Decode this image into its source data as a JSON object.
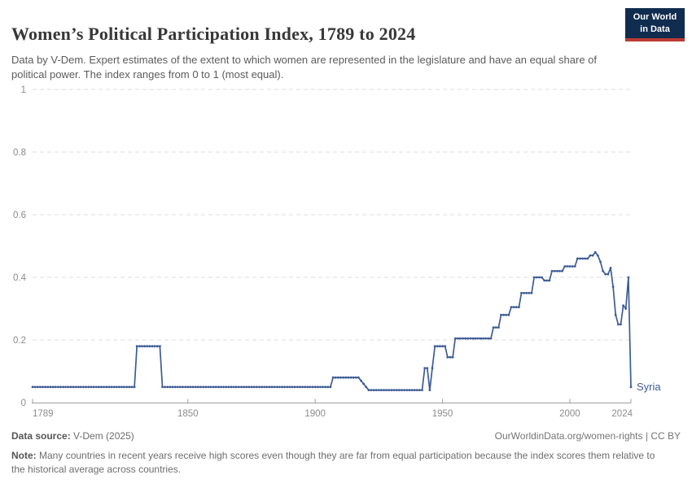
{
  "header": {
    "title": "Women’s Political Participation Index, 1789 to 2024",
    "subtitle": "Data by V-Dem. Expert estimates of the extent to which women are represented in the legislature and have an equal share of political power. The index ranges from 0 to 1 (most equal).",
    "logo": {
      "line1": "Our World",
      "line2": "in Data"
    }
  },
  "footer": {
    "source_label": "Data source:",
    "source_value": "V-Dem (2025)",
    "url": "OurWorldinData.org/women-rights",
    "separator": " | ",
    "license": "CC BY",
    "note_label": "Note:",
    "note_text": "Many countries in recent years receive high scores even though they are far from equal participation because the index scores them relative to the historical average across countries."
  },
  "colors": {
    "line": "#3d5c96",
    "grid": "#dcdcdc",
    "axis": "#9e9e9e",
    "tick_label": "#8b8b8b",
    "logo_bg": "#102c4e",
    "logo_accent": "#bc3b33"
  },
  "chart_data": {
    "type": "line",
    "title": "Women’s Political Participation Index, 1789 to 2024",
    "entity_label": "Syria",
    "xlabel": "",
    "ylabel": "",
    "xlim": [
      1789,
      2024
    ],
    "ylim": [
      0,
      1
    ],
    "x_ticks": [
      1789,
      1850,
      1900,
      1950,
      2000,
      2024
    ],
    "y_ticks": [
      0,
      0.2,
      0.4,
      0.6,
      0.8,
      1
    ],
    "grid": "horizontal-dashed",
    "legend_position": "end-of-line-label",
    "series": [
      {
        "name": "Syria",
        "runs": [
          {
            "start": 1789,
            "end": 1829,
            "value": 0.05
          },
          {
            "start": 1830,
            "end": 1839,
            "value": 0.18
          },
          {
            "start": 1840,
            "end": 1906,
            "value": 0.05
          },
          {
            "start": 1907,
            "end": 1917,
            "value": 0.08
          },
          {
            "start": 1918,
            "end": 1918,
            "value": 0.07
          },
          {
            "start": 1919,
            "end": 1919,
            "value": 0.06
          },
          {
            "start": 1920,
            "end": 1920,
            "value": 0.05
          },
          {
            "start": 1921,
            "end": 1942,
            "value": 0.04
          },
          {
            "start": 1943,
            "end": 1944,
            "value": 0.11
          },
          {
            "start": 1945,
            "end": 1945,
            "value": 0.04
          },
          {
            "start": 1946,
            "end": 1946,
            "value": 0.11
          },
          {
            "start": 1947,
            "end": 1951,
            "value": 0.18
          },
          {
            "start": 1952,
            "end": 1954,
            "value": 0.145
          },
          {
            "start": 1955,
            "end": 1969,
            "value": 0.205
          },
          {
            "start": 1970,
            "end": 1972,
            "value": 0.24
          },
          {
            "start": 1973,
            "end": 1976,
            "value": 0.28
          },
          {
            "start": 1977,
            "end": 1980,
            "value": 0.305
          },
          {
            "start": 1981,
            "end": 1985,
            "value": 0.35
          },
          {
            "start": 1986,
            "end": 1989,
            "value": 0.4
          },
          {
            "start": 1990,
            "end": 1992,
            "value": 0.39
          },
          {
            "start": 1993,
            "end": 1997,
            "value": 0.42
          },
          {
            "start": 1998,
            "end": 2002,
            "value": 0.435
          },
          {
            "start": 2003,
            "end": 2007,
            "value": 0.46
          },
          {
            "start": 2008,
            "end": 2009,
            "value": 0.47
          },
          {
            "start": 2010,
            "end": 2010,
            "value": 0.48
          },
          {
            "start": 2011,
            "end": 2011,
            "value": 0.47
          },
          {
            "start": 2012,
            "end": 2012,
            "value": 0.45
          },
          {
            "start": 2013,
            "end": 2013,
            "value": 0.42
          },
          {
            "start": 2014,
            "end": 2015,
            "value": 0.41
          },
          {
            "start": 2016,
            "end": 2016,
            "value": 0.43
          },
          {
            "start": 2017,
            "end": 2017,
            "value": 0.37
          },
          {
            "start": 2018,
            "end": 2018,
            "value": 0.28
          },
          {
            "start": 2019,
            "end": 2020,
            "value": 0.25
          },
          {
            "start": 2021,
            "end": 2021,
            "value": 0.31
          },
          {
            "start": 2022,
            "end": 2022,
            "value": 0.3
          },
          {
            "start": 2023,
            "end": 2023,
            "value": 0.4
          },
          {
            "start": 2024,
            "end": 2024,
            "value": 0.05
          }
        ]
      }
    ]
  }
}
